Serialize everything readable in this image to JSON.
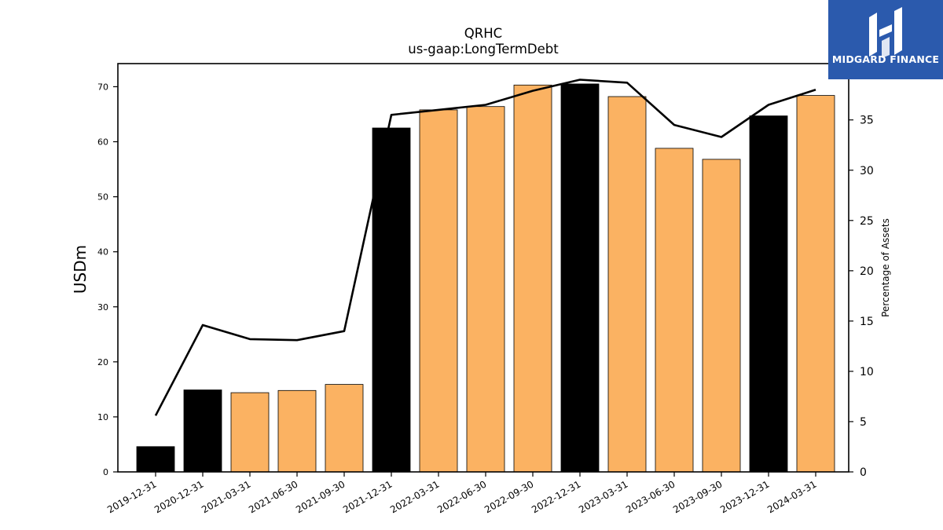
{
  "chart_data": {
    "type": "bar",
    "title": "QRHC",
    "subtitle": "us-gaap:LongTermDebt",
    "ylabel": "USDm",
    "y2label": "Percentage of Assets",
    "ylim": [
      0,
      74.2
    ],
    "y2lim": [
      0,
      40.6
    ],
    "yticks": [
      0,
      10,
      20,
      30,
      40,
      50,
      60,
      70
    ],
    "y2ticks": [
      0,
      5,
      10,
      15,
      20,
      25,
      30,
      35
    ],
    "categories": [
      "2019-12-31",
      "2020-12-31",
      "2021-03-31",
      "2021-06-30",
      "2021-09-30",
      "2021-12-31",
      "2022-03-31",
      "2022-06-30",
      "2022-09-30",
      "2022-12-31",
      "2023-03-31",
      "2023-06-30",
      "2023-09-30",
      "2023-12-31",
      "2024-03-31"
    ],
    "series": [
      {
        "values": [
          4.6,
          14.9,
          14.4,
          14.8,
          15.9,
          62.5,
          65.8,
          66.4,
          70.3,
          70.5,
          68.2,
          58.8,
          56.8,
          64.7,
          68.4
        ],
        "bar_colors": [
          "#000000",
          "#000000",
          "#fbb262",
          "#fbb262",
          "#fbb262",
          "#000000",
          "#fbb262",
          "#fbb262",
          "#fbb262",
          "#000000",
          "#fbb262",
          "#fbb262",
          "#fbb262",
          "#000000",
          "#fbb262"
        ]
      },
      {
        "type": "line",
        "axis": "right",
        "color": "#000000",
        "values": [
          5.6,
          14.6,
          13.2,
          13.1,
          14.0,
          35.5,
          36.0,
          36.5,
          37.9,
          39.0,
          38.7,
          34.5,
          33.3,
          36.5,
          38.0
        ]
      }
    ],
    "grid": false,
    "legend": "none"
  },
  "logo": {
    "text": "MIDGARD FINANCE",
    "color": "#2b5aad"
  }
}
